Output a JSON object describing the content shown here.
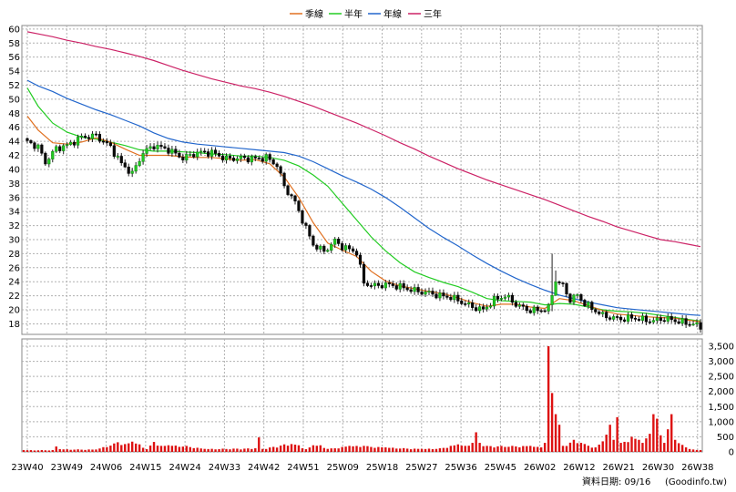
{
  "legend": [
    {
      "label": "季線",
      "color": "#e07020"
    },
    {
      "label": "半年",
      "color": "#22cc22"
    },
    {
      "label": "年線",
      "color": "#2266cc"
    },
    {
      "label": "三年",
      "color": "#cc2266"
    }
  ],
  "footer": {
    "date_text": "資料日期: 09/16",
    "source_text": "(Goodinfo.tw)"
  },
  "colors": {
    "up": "#22cc22",
    "down": "#0a0a0a",
    "volume": "#dd1111",
    "grid": "#b0b0b0"
  },
  "chart_data": {
    "type": "candlestick",
    "title": "",
    "price_axis": {
      "range": [
        16.5,
        60.5
      ],
      "ticks": [
        18,
        20,
        22,
        24,
        26,
        28,
        30,
        32,
        34,
        36,
        38,
        40,
        42,
        44,
        46,
        48,
        50,
        52,
        54,
        56,
        58,
        60
      ],
      "position": "left"
    },
    "volume_axis": {
      "range": [
        0,
        3500
      ],
      "ticks": [
        0,
        500,
        1000,
        1500,
        2000,
        2500,
        3000,
        3500
      ],
      "tick_labels": [
        "0",
        "500",
        "1,000",
        "1,500",
        "2,000",
        "2,500",
        "3,000",
        "3,500"
      ],
      "position": "right"
    },
    "x_tick_labels": [
      "23W40",
      "23W49",
      "24W06",
      "24W15",
      "24W24",
      "24W33",
      "24W42",
      "24W51",
      "25W09",
      "25W18",
      "25W27",
      "25W36",
      "25W45",
      "26W02",
      "26W12",
      "26W21",
      "26W30",
      "26W38"
    ],
    "grid": true,
    "legend_position": "top-center",
    "price_anchors": [
      [
        0,
        44.2
      ],
      [
        4,
        43.2
      ],
      [
        6,
        41.0
      ],
      [
        9,
        43.0
      ],
      [
        12,
        43.4
      ],
      [
        16,
        44.6
      ],
      [
        20,
        44.8
      ],
      [
        24,
        43.2
      ],
      [
        27,
        40.8
      ],
      [
        30,
        39.4
      ],
      [
        33,
        42.4
      ],
      [
        36,
        43.4
      ],
      [
        40,
        42.8
      ],
      [
        44,
        41.6
      ],
      [
        48,
        42.4
      ],
      [
        52,
        42.4
      ],
      [
        56,
        41.5
      ],
      [
        60,
        41.6
      ],
      [
        64,
        41.5
      ],
      [
        67,
        41.7
      ],
      [
        70,
        40.6
      ],
      [
        72,
        37.6
      ],
      [
        75,
        35.3
      ],
      [
        78,
        31.6
      ],
      [
        80,
        29.3
      ],
      [
        83,
        28.3
      ],
      [
        86,
        29.8
      ],
      [
        88,
        29.0
      ],
      [
        90,
        28.6
      ],
      [
        92,
        28.2
      ],
      [
        94,
        23.8
      ],
      [
        97,
        23.4
      ],
      [
        100,
        23.6
      ],
      [
        103,
        23.4
      ],
      [
        106,
        23.0
      ],
      [
        109,
        22.6
      ],
      [
        112,
        22.4
      ],
      [
        115,
        22.0
      ],
      [
        118,
        21.8
      ],
      [
        121,
        21.1
      ],
      [
        124,
        20.4
      ],
      [
        127,
        20.0
      ],
      [
        130,
        21.4
      ],
      [
        133,
        22.0
      ],
      [
        136,
        20.8
      ],
      [
        139,
        20.0
      ],
      [
        142,
        19.9
      ],
      [
        145,
        20.2
      ],
      [
        147,
        24.2
      ],
      [
        149,
        23.4
      ],
      [
        151,
        21.4
      ],
      [
        153,
        22.1
      ],
      [
        155,
        20.9
      ],
      [
        157,
        20.2
      ],
      [
        160,
        19.2
      ],
      [
        163,
        18.8
      ],
      [
        166,
        18.7
      ],
      [
        168,
        18.9
      ],
      [
        171,
        18.6
      ],
      [
        174,
        18.4
      ],
      [
        176,
        18.7
      ],
      [
        179,
        18.6
      ],
      [
        182,
        18.2
      ],
      [
        185,
        18.0
      ],
      [
        187,
        17.5
      ]
    ],
    "spikes": [
      {
        "index": 146,
        "high": 28.0,
        "low": 19.8
      },
      {
        "index": 147,
        "high": 25.6,
        "low": 22.2
      }
    ],
    "volume_anchors": [
      [
        0,
        60
      ],
      [
        8,
        60
      ],
      [
        9,
        180
      ],
      [
        10,
        90
      ],
      [
        20,
        80
      ],
      [
        26,
        320
      ],
      [
        28,
        260
      ],
      [
        30,
        340
      ],
      [
        32,
        250
      ],
      [
        34,
        90
      ],
      [
        36,
        330
      ],
      [
        38,
        200
      ],
      [
        40,
        220
      ],
      [
        45,
        200
      ],
      [
        50,
        100
      ],
      [
        64,
        120
      ],
      [
        65,
        480
      ],
      [
        66,
        100
      ],
      [
        72,
        250
      ],
      [
        74,
        260
      ],
      [
        76,
        220
      ],
      [
        78,
        90
      ],
      [
        80,
        220
      ],
      [
        82,
        220
      ],
      [
        84,
        100
      ],
      [
        90,
        200
      ],
      [
        94,
        200
      ],
      [
        100,
        150
      ],
      [
        110,
        100
      ],
      [
        115,
        120
      ],
      [
        118,
        200
      ],
      [
        120,
        250
      ],
      [
        122,
        200
      ],
      [
        124,
        300
      ],
      [
        125,
        650
      ],
      [
        126,
        300
      ],
      [
        128,
        200
      ],
      [
        135,
        200
      ],
      [
        140,
        200
      ],
      [
        143,
        150
      ],
      [
        144,
        300
      ],
      [
        145,
        3500
      ],
      [
        146,
        1950
      ],
      [
        147,
        1250
      ],
      [
        148,
        900
      ],
      [
        149,
        200
      ],
      [
        152,
        400
      ],
      [
        154,
        300
      ],
      [
        158,
        150
      ],
      [
        160,
        350
      ],
      [
        162,
        900
      ],
      [
        163,
        400
      ],
      [
        164,
        1150
      ],
      [
        165,
        300
      ],
      [
        168,
        500
      ],
      [
        170,
        400
      ],
      [
        171,
        300
      ],
      [
        173,
        600
      ],
      [
        174,
        1250
      ],
      [
        175,
        1100
      ],
      [
        176,
        550
      ],
      [
        177,
        300
      ],
      [
        179,
        1250
      ],
      [
        180,
        400
      ],
      [
        183,
        150
      ],
      [
        185,
        80
      ],
      [
        187,
        60
      ]
    ],
    "ma_quarter": [
      [
        1,
        47.6
      ],
      [
        4,
        45.6
      ],
      [
        8,
        43.8
      ],
      [
        12,
        43.6
      ],
      [
        16,
        43.9
      ],
      [
        20,
        44.5
      ],
      [
        24,
        43.9
      ],
      [
        28,
        42.9
      ],
      [
        32,
        42.0
      ],
      [
        36,
        42.0
      ],
      [
        40,
        42.0
      ],
      [
        44,
        41.8
      ],
      [
        48,
        41.7
      ],
      [
        52,
        41.7
      ],
      [
        56,
        41.5
      ],
      [
        60,
        41.3
      ],
      [
        64,
        41.4
      ],
      [
        68,
        40.8
      ],
      [
        72,
        38.9
      ],
      [
        76,
        36.0
      ],
      [
        80,
        32.4
      ],
      [
        84,
        29.5
      ],
      [
        88,
        28.5
      ],
      [
        92,
        27.6
      ],
      [
        96,
        25.5
      ],
      [
        100,
        24.1
      ],
      [
        104,
        23.4
      ],
      [
        108,
        23.0
      ],
      [
        112,
        22.6
      ],
      [
        116,
        22.3
      ],
      [
        120,
        21.7
      ],
      [
        124,
        21.0
      ],
      [
        128,
        20.5
      ],
      [
        132,
        20.8
      ],
      [
        136,
        20.8
      ],
      [
        140,
        20.4
      ],
      [
        144,
        20.2
      ],
      [
        148,
        21.6
      ],
      [
        152,
        21.3
      ],
      [
        156,
        20.6
      ],
      [
        160,
        19.9
      ],
      [
        164,
        19.4
      ],
      [
        168,
        19.2
      ],
      [
        172,
        19.0
      ],
      [
        176,
        18.9
      ],
      [
        180,
        18.8
      ],
      [
        184,
        18.5
      ],
      [
        187,
        18.3
      ]
    ],
    "ma_half": [
      [
        1,
        51.6
      ],
      [
        4,
        49.0
      ],
      [
        8,
        46.6
      ],
      [
        12,
        45.3
      ],
      [
        16,
        44.6
      ],
      [
        20,
        44.3
      ],
      [
        24,
        43.9
      ],
      [
        28,
        43.4
      ],
      [
        32,
        42.8
      ],
      [
        36,
        42.6
      ],
      [
        40,
        42.6
      ],
      [
        44,
        42.5
      ],
      [
        48,
        42.4
      ],
      [
        52,
        42.2
      ],
      [
        56,
        42.1
      ],
      [
        60,
        41.9
      ],
      [
        64,
        41.9
      ],
      [
        68,
        41.7
      ],
      [
        72,
        41.3
      ],
      [
        76,
        40.5
      ],
      [
        80,
        39.2
      ],
      [
        84,
        37.6
      ],
      [
        88,
        35.2
      ],
      [
        92,
        32.8
      ],
      [
        96,
        30.4
      ],
      [
        100,
        28.4
      ],
      [
        104,
        26.7
      ],
      [
        108,
        25.4
      ],
      [
        112,
        24.6
      ],
      [
        116,
        23.9
      ],
      [
        120,
        23.3
      ],
      [
        124,
        22.5
      ],
      [
        128,
        21.6
      ],
      [
        132,
        21.3
      ],
      [
        136,
        21.2
      ],
      [
        140,
        21.1
      ],
      [
        144,
        20.7
      ],
      [
        148,
        20.9
      ],
      [
        152,
        20.8
      ],
      [
        156,
        20.4
      ],
      [
        160,
        20.0
      ],
      [
        164,
        19.8
      ],
      [
        168,
        19.7
      ],
      [
        172,
        19.5
      ],
      [
        176,
        19.2
      ],
      [
        180,
        18.9
      ],
      [
        184,
        18.6
      ],
      [
        187,
        18.4
      ]
    ],
    "ma_year": [
      [
        1,
        52.7
      ],
      [
        4,
        51.9
      ],
      [
        8,
        51.1
      ],
      [
        12,
        50.1
      ],
      [
        16,
        49.3
      ],
      [
        20,
        48.5
      ],
      [
        24,
        47.8
      ],
      [
        28,
        47.0
      ],
      [
        32,
        46.2
      ],
      [
        36,
        45.2
      ],
      [
        40,
        44.4
      ],
      [
        44,
        43.9
      ],
      [
        48,
        43.6
      ],
      [
        52,
        43.4
      ],
      [
        56,
        43.2
      ],
      [
        60,
        43.0
      ],
      [
        64,
        42.8
      ],
      [
        68,
        42.6
      ],
      [
        72,
        42.4
      ],
      [
        76,
        41.9
      ],
      [
        80,
        41.1
      ],
      [
        84,
        40.1
      ],
      [
        88,
        39.1
      ],
      [
        92,
        38.2
      ],
      [
        96,
        37.2
      ],
      [
        100,
        36.0
      ],
      [
        104,
        34.6
      ],
      [
        108,
        33.1
      ],
      [
        112,
        31.6
      ],
      [
        116,
        30.3
      ],
      [
        120,
        29.1
      ],
      [
        124,
        27.8
      ],
      [
        128,
        26.6
      ],
      [
        132,
        25.5
      ],
      [
        136,
        24.5
      ],
      [
        140,
        23.6
      ],
      [
        144,
        22.8
      ],
      [
        148,
        22.1
      ],
      [
        152,
        21.6
      ],
      [
        156,
        21.1
      ],
      [
        160,
        20.7
      ],
      [
        164,
        20.3
      ],
      [
        168,
        20.1
      ],
      [
        172,
        19.9
      ],
      [
        176,
        19.7
      ],
      [
        180,
        19.5
      ],
      [
        184,
        19.3
      ],
      [
        187,
        19.2
      ]
    ],
    "ma_3year": [
      [
        1,
        59.6
      ],
      [
        4,
        59.3
      ],
      [
        8,
        58.9
      ],
      [
        12,
        58.4
      ],
      [
        16,
        58.0
      ],
      [
        20,
        57.5
      ],
      [
        24,
        57.1
      ],
      [
        28,
        56.6
      ],
      [
        32,
        56.1
      ],
      [
        36,
        55.5
      ],
      [
        40,
        54.8
      ],
      [
        44,
        54.1
      ],
      [
        48,
        53.5
      ],
      [
        52,
        52.9
      ],
      [
        56,
        52.4
      ],
      [
        60,
        51.9
      ],
      [
        64,
        51.5
      ],
      [
        68,
        51.0
      ],
      [
        72,
        50.4
      ],
      [
        76,
        49.7
      ],
      [
        80,
        49.0
      ],
      [
        84,
        48.2
      ],
      [
        88,
        47.4
      ],
      [
        92,
        46.6
      ],
      [
        96,
        45.7
      ],
      [
        100,
        44.8
      ],
      [
        104,
        43.8
      ],
      [
        108,
        42.9
      ],
      [
        112,
        41.9
      ],
      [
        116,
        41.0
      ],
      [
        120,
        40.1
      ],
      [
        124,
        39.3
      ],
      [
        128,
        38.5
      ],
      [
        132,
        37.8
      ],
      [
        136,
        37.1
      ],
      [
        140,
        36.4
      ],
      [
        144,
        35.7
      ],
      [
        148,
        34.9
      ],
      [
        152,
        34.1
      ],
      [
        156,
        33.3
      ],
      [
        160,
        32.6
      ],
      [
        164,
        31.8
      ],
      [
        168,
        31.2
      ],
      [
        172,
        30.6
      ],
      [
        176,
        30.0
      ],
      [
        180,
        29.7
      ],
      [
        184,
        29.3
      ],
      [
        187,
        29.0
      ]
    ]
  }
}
